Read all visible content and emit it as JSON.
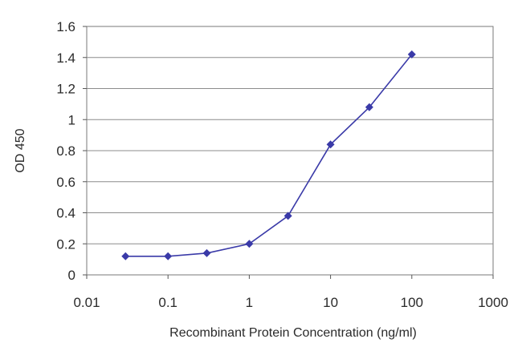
{
  "chart_data": {
    "type": "line",
    "title": "",
    "xlabel": "Recombinant Protein Concentration (ng/ml)",
    "ylabel": "OD 450",
    "x_scale": "log",
    "xlim": [
      0.01,
      1000
    ],
    "ylim": [
      0,
      1.6
    ],
    "x_ticks": [
      "0.01",
      "0.1",
      "1",
      "10",
      "100",
      "1000"
    ],
    "y_ticks": [
      "0",
      "0.2",
      "0.4",
      "0.6",
      "0.8",
      "1",
      "1.2",
      "1.4",
      "1.6"
    ],
    "grid": "horizontal",
    "legend": "none",
    "series": [
      {
        "color": "#3a3aa8",
        "x": [
          0.03,
          0.1,
          0.3,
          1,
          3,
          10,
          30,
          100
        ],
        "y": [
          0.12,
          0.12,
          0.14,
          0.2,
          0.38,
          0.84,
          1.08,
          1.42
        ]
      }
    ]
  }
}
